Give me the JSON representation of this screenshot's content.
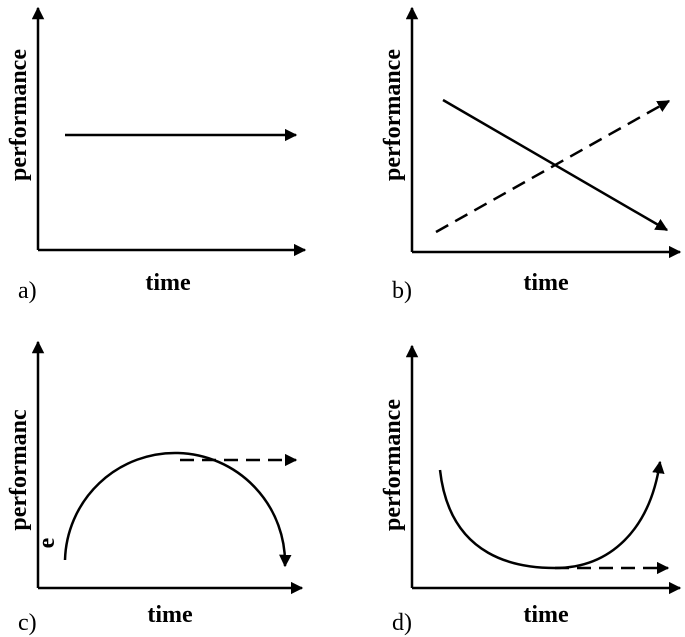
{
  "panels": [
    {
      "label": "a)",
      "ylabel": [
        "performance"
      ],
      "xlabel": "time"
    },
    {
      "label": "b)",
      "ylabel": [
        "performance"
      ],
      "xlabel": "time"
    },
    {
      "label": "c)",
      "ylabel": [
        "performanc",
        "e"
      ],
      "xlabel": "time"
    },
    {
      "label": "d)",
      "ylabel": [
        "performance"
      ],
      "xlabel": "time"
    }
  ]
}
